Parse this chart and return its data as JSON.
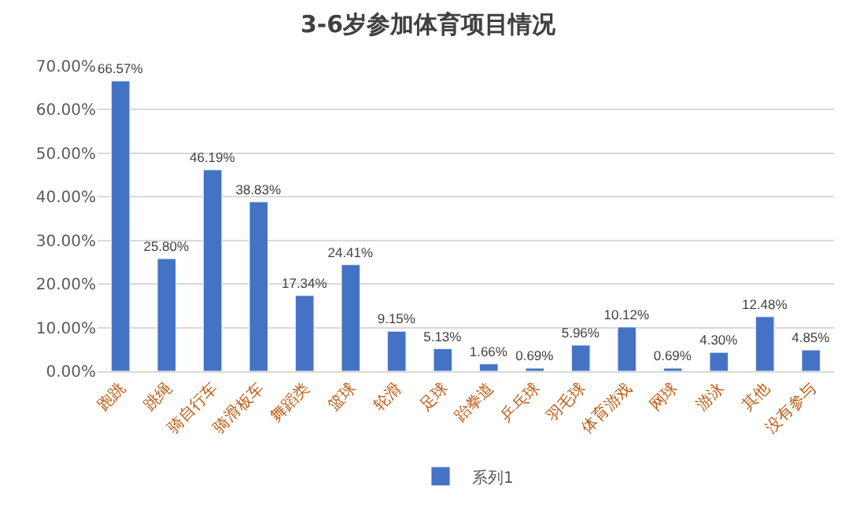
{
  "chart_data": {
    "type": "bar",
    "title": "3-6岁参加体育项目情况",
    "categories": [
      "跑跳",
      "跳绳",
      "骑自行车",
      "骑滑板车",
      "舞蹈类",
      "篮球",
      "轮滑",
      "足球",
      "跆拳道",
      "乒乓球",
      "羽毛球",
      "体育游戏",
      "网球",
      "游泳",
      "其他",
      "没有参与"
    ],
    "series": [
      {
        "name": "系列1",
        "color": "#4472c4",
        "values": [
          66.57,
          25.8,
          46.19,
          38.83,
          17.34,
          24.41,
          9.15,
          5.13,
          1.66,
          0.69,
          5.96,
          10.12,
          0.69,
          4.3,
          12.48,
          4.85
        ],
        "value_labels": [
          "66.57%",
          "25.80%",
          "46.19%",
          "38.83%",
          "17.34%",
          "24.41%",
          "9.15%",
          "5.13%",
          "1.66%",
          "0.69%",
          "5.96%",
          "10.12%",
          "0.69%",
          "4.30%",
          "12.48%",
          "4.85%"
        ]
      }
    ],
    "ylim": [
      0,
      70
    ],
    "yticks": [
      {
        "value": 0,
        "label": "0.00%"
      },
      {
        "value": 10,
        "label": "10.00%"
      },
      {
        "value": 20,
        "label": "20.00%"
      },
      {
        "value": 30,
        "label": "30.00%"
      },
      {
        "value": 40,
        "label": "40.00%"
      },
      {
        "value": 50,
        "label": "50.00%"
      },
      {
        "value": 60,
        "label": "60.00%"
      },
      {
        "value": 70,
        "label": "70.00%"
      }
    ],
    "grid": "y",
    "legend": "bottom"
  }
}
